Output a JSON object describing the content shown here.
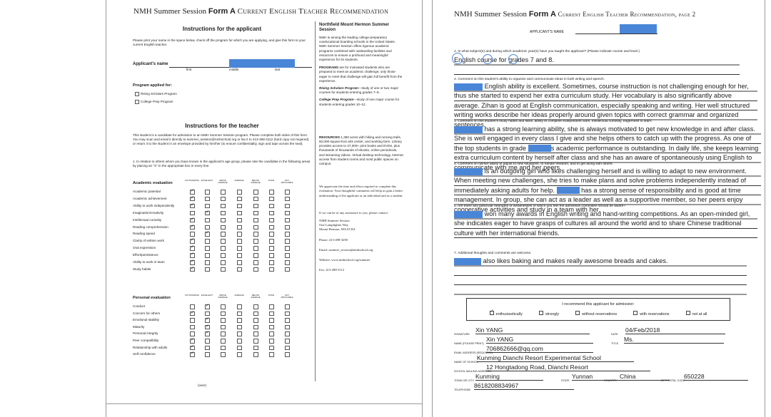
{
  "page1": {
    "header": {
      "brand": "NMH Summer Session",
      "form": "Form A",
      "title": "Current English Teacher Recommendation"
    },
    "applicant": {
      "title": "Instructions for the applicant",
      "text": "Please print your name in the space below, check off the program for which you are applying, and give this form to your current English teacher.",
      "name_label": "Applicant's name",
      "name_parts": [
        "first",
        "middle",
        "last"
      ],
      "program_label": "Program applied for:",
      "programs": [
        "Rising Scholars Program",
        "College Prep Program"
      ]
    },
    "teacher": {
      "title": "Instructions for the teacher",
      "text": "This student is a candidate for admission to an NMH Summer Session program. Please complete both sides of this form. You may scan and email it directly to summer_session@nmhschool.org or fax it to 413-498-3112 (hard copy not required) or return it to the student in an envelope provided by him/her (to ensure confidentiality, sign and tape across the seal).",
      "question": "1. In relation to others whom you have known in the applicant's age group, please rate the candidate in the following areas by placing an \"X\" in the appropriate box in every line."
    },
    "academic": {
      "title": "Academic evaluation",
      "columns": [
        "OUTSTANDING",
        "EXCELLENT",
        "ABOVE AVERAGE",
        "AVERAGE",
        "BELOW AVERAGE",
        "POOR",
        "NOT APPLICABLE"
      ],
      "rows": [
        {
          "label": "Academic potential",
          "checked": 0
        },
        {
          "label": "Academic achievement",
          "checked": 0
        },
        {
          "label": "Ability to work independently",
          "checked": 0
        },
        {
          "label": "Imagination/creativity",
          "checked": 1
        },
        {
          "label": "Intellectual curiosity",
          "checked": 0
        },
        {
          "label": "Reading comprehension",
          "checked": 0
        },
        {
          "label": "Reading speed",
          "checked": 1
        },
        {
          "label": "Clarity of written work",
          "checked": 0
        },
        {
          "label": "Oral expression",
          "checked": 0
        },
        {
          "label": "Effort/persistence",
          "checked": 0
        },
        {
          "label": "Ability to work in team",
          "checked": 0
        },
        {
          "label": "Study habits",
          "checked": 0
        }
      ]
    },
    "personal": {
      "title": "Personal evaluation",
      "columns": [
        "OUTSTANDING",
        "EXCELLENT",
        "ABOVE AVERAGE",
        "AVERAGE",
        "BELOW AVERAGE",
        "POOR",
        "NOT APPLICABLE"
      ],
      "rows": [
        {
          "label": "Conduct",
          "checked": 1
        },
        {
          "label": "Concern for others",
          "checked": 0
        },
        {
          "label": "Emotional stability",
          "checked": 1
        },
        {
          "label": "Maturity",
          "checked": 1
        },
        {
          "label": "Personal integrity",
          "checked": 1
        },
        {
          "label": "Peer compatibility",
          "checked": 0
        },
        {
          "label": "Relationship with adults",
          "checked": 0
        },
        {
          "label": "Self-confidence",
          "checked": 0
        }
      ]
    },
    "footer": "(over)",
    "sidebar": {
      "title": "Northfield Mount Hermon Summer Session",
      "intro": "NMH is among the leading college-preparatory coeducational boarding schools in the United States. NMH Summer Session offers rigorous academic programs combined with outstanding facilities and resources to ensure a profound and meaningful experience for its students.",
      "programs_head": "PROGRAMS",
      "programs_text": "are for motivated students who are prepared to meet an academic challenge; only those eager to meet that challenge will gain full benefit from the experience.",
      "rising": "Rising Scholars Program",
      "rising_text": "—study of one or two major courses for students entering grades 7–9.",
      "college": "College Prep Program",
      "college_text": "—study of one major course for students entering grades 10–12.",
      "resources_head": "RESOURCES",
      "resources_text": "1,350 acres with hiking and running trails, 50,000-square-foot arts center, and working farm. Library provides access to 27,000+ print books and DVDs, plus thousands of thousands of ebooks, online periodicals, and streaming videos. Virtual desktop technology, Internet access from student rooms and most public spaces on campus.",
      "appreciate": "We appreciate the time and effort required to complete this evaluation. Your thoughtful comments will help us gain a better understanding of the applicant as an individual and as a student.",
      "contact": "If we can be of any assistance to you, please contact:",
      "address": "NMH Summer Session\nOne Lamplighter Way\nMount Hermon, MA 01354",
      "phone": "Phone: 413-498-3290",
      "email": "Email: summer_session@nmhschool.org",
      "website": "Website: www.nmhschool.org/summer",
      "fax": "Fax: 413-498-3112"
    }
  },
  "page2": {
    "header": {
      "brand": "NMH Summer Session",
      "form": "Form A",
      "title": "Current English Teacher Recommendation, page 2"
    },
    "applicant_label": "Applicant's name",
    "questions": [
      {
        "label": "1. In what subject(s) and during which academic year(s) have you taught the applicant? (Please indicate course and level.)",
        "answer": [
          "English course for grades 7 and 8."
        ]
      },
      {
        "label": "2. Comment on this student's ability to organize and communicate ideas in both writing and speech.",
        "answer": [
          "English ability is excellent. Sometimes, course instruction is not challenging enough for her, thus she started to expend her extra curriculum study. Her vocabulary is also significantly above average. Zihan is good at English communication, especially speaking and writing. Her well structured writing works describe her ideas properly around given topics with correct grammar and organized sentences."
        ]
      },
      {
        "label": "3. Comment on this student's study habits and skills, ability to complete independent work, intellectual curiosity, eagerness to learn.",
        "answer": [
          "has a strong learning ability, she is always motivated to get new knowledge in and after class. She is well engaged in every class I give and she helps others to catch up with the progress. As one of the top students in grade ",
          "s academic performance is outstanding. In daily life, she keeps learning extra curriculum content by herself after class and she has an aware of spontaneously using English to communicate with me and her peers."
        ]
      },
      {
        "label": "4. Comment on his/her ability to adjust to new situations, to handle freedom, and to get along with others.",
        "answer": [
          "is an outgoing girl who likes challenging herself and is willing to adapt to new environment. When meeting new challenges, she tries to make plans and solve problems independently instead of immediately asking adults for help. ",
          "has a strong sense of responsibility and is good at time management. In group, she can act as a leader as well as a supportive member, so her peers enjoy cooperative activities and study in a team with her."
        ]
      },
      {
        "label": "5. Are there any particular strengths or weaknesses of which you feel the admission committee should be aware?",
        "answer": [
          "won many awards in English writing and hand-writing competitions. As an open-minded girl, she indicates eager to have grasps of cultures all around the world and to share Chinese traditional culture with her international friends."
        ]
      },
      {
        "label": "7. Additional thoughts and comments are welcome.",
        "answer": [
          "also likes baking and makes really awesome breads and cakes."
        ]
      }
    ],
    "recommend": {
      "label": "I recommend this applicant for admission:",
      "options": [
        "enthusiastically",
        "strongly",
        "without reservations",
        "with reservations",
        "not at all"
      ],
      "checked": 0
    },
    "fields": {
      "signature_label": "Signature",
      "signature": "Xin YANG",
      "date_label": "Date",
      "date": "04/Feb/2018",
      "name_label": "Name (please print)",
      "name": "Xin YANG",
      "title_label": "Title",
      "title": "Ms.",
      "email_label": "Email address (required)",
      "email": "706862666@qq.com",
      "school_label": "Name of school",
      "school": "Kunming Dianchi Resort Experimental School",
      "mailing_label": "School mailing address",
      "mailing": "12 Hongtadong Road, Dianchi Resort",
      "town_label": "Town or city",
      "town": "Kunming",
      "state_label": "State",
      "state": "Yunnan",
      "country_label": "Country",
      "country": "China",
      "zip_label": "Zip/postal code",
      "zip": "650228",
      "phone_label": "Telephone",
      "phone": "8618208834967"
    }
  }
}
